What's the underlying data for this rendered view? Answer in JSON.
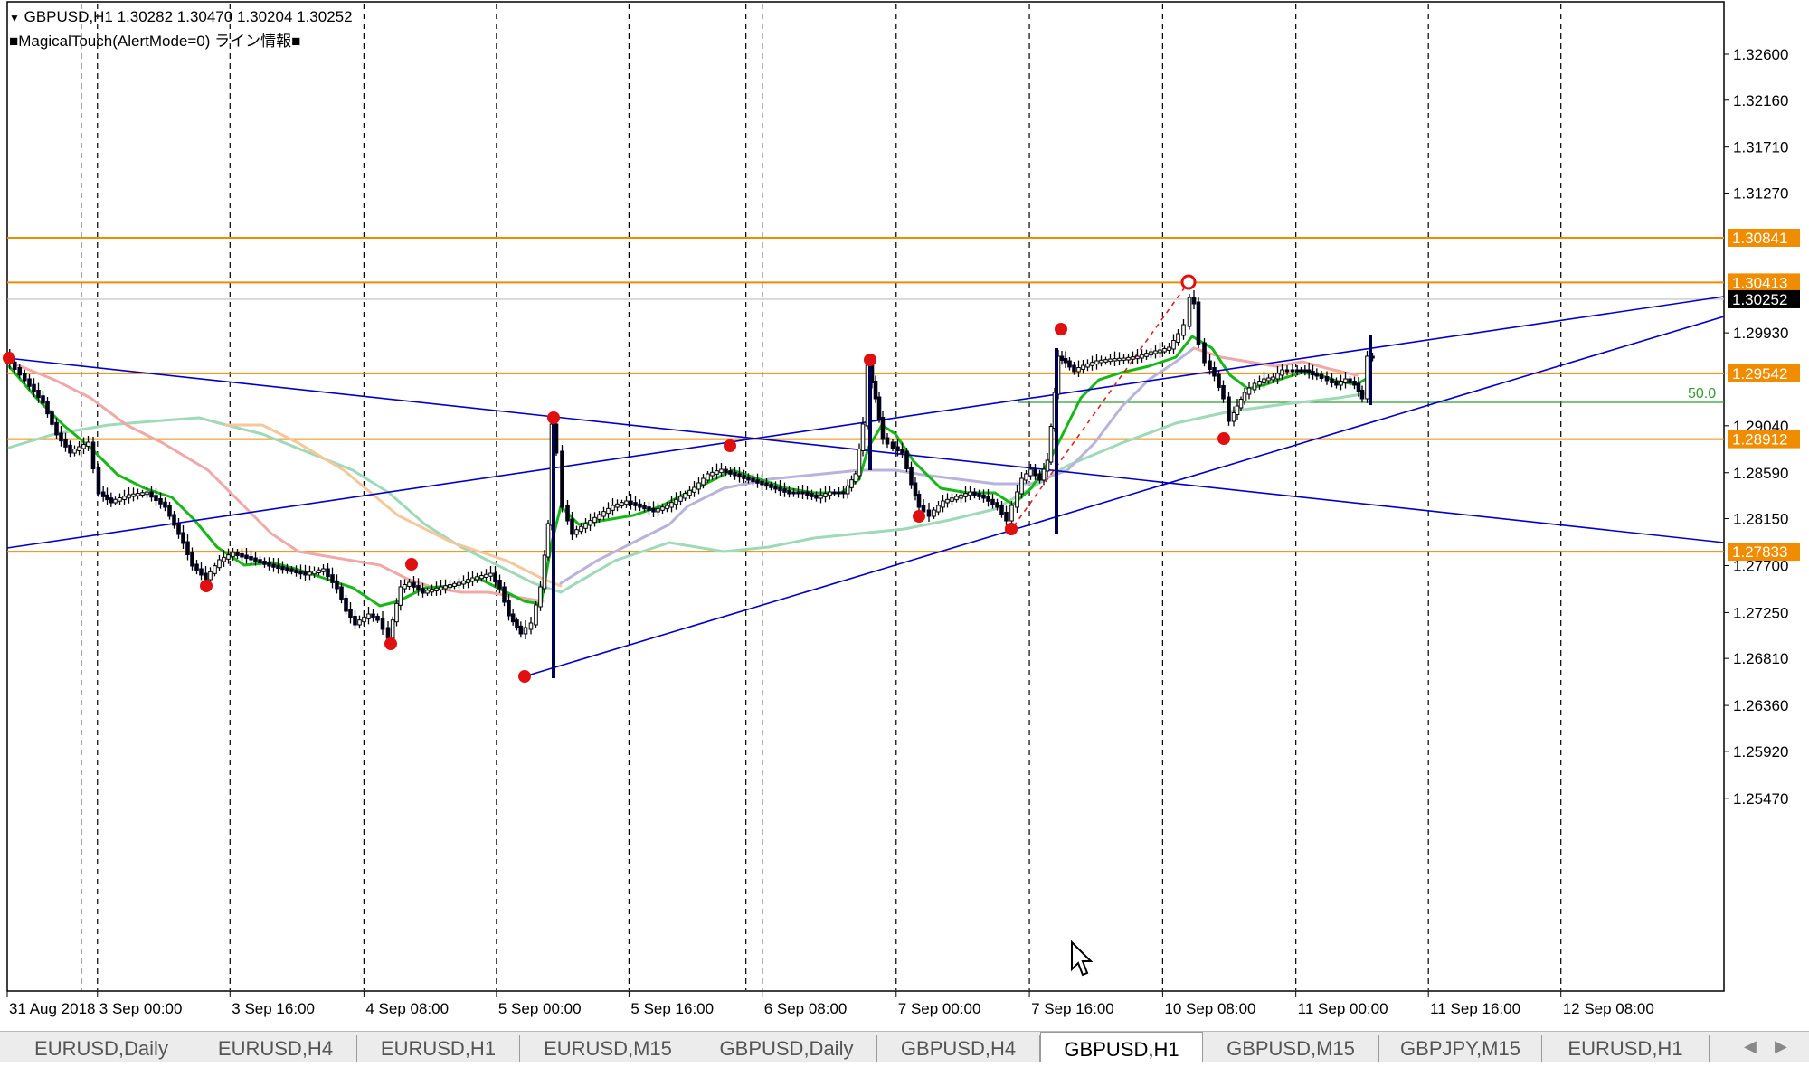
{
  "header": {
    "symbol_line": "GBPUSD,H1  1.30282 1.30470 1.30204 1.30252",
    "indicator_line": "■MagicalTouch(AlertMode=0) ライン情報■"
  },
  "chart_data": {
    "type": "candlestick",
    "symbol": "GBPUSD",
    "timeframe": "H1",
    "ohlc": {
      "open": 1.30282,
      "high": 1.3047,
      "low": 1.30204,
      "close": 1.30252
    },
    "y_ticks": [
      1.326,
      1.3216,
      1.3171,
      1.3127,
      1.2993,
      1.2904,
      1.2859,
      1.2815,
      1.277,
      1.2725,
      1.2681,
      1.2636,
      1.2592,
      1.2547
    ],
    "y_tick_labels": [
      "1.32600",
      "1.32160",
      "1.31710",
      "1.31270",
      "1.29930",
      "1.29040",
      "1.28590",
      "1.28150",
      "1.27700",
      "1.27250",
      "1.26810",
      "1.26360",
      "1.25920",
      "1.25470"
    ],
    "x_tick_labels": [
      "31 Aug 2018",
      "3 Sep 00:00",
      "3 Sep 16:00",
      "4 Sep 08:00",
      "5 Sep 00:00",
      "5 Sep 16:00",
      "6 Sep 08:00",
      "7 Sep 00:00",
      "7 Sep 16:00",
      "10 Sep 08:00",
      "11 Sep 00:00",
      "11 Sep 16:00",
      "12 Sep 08:00"
    ],
    "horizontal_levels": [
      {
        "value": 1.30841,
        "label": "1.30841"
      },
      {
        "value": 1.30413,
        "label": "1.30413"
      },
      {
        "value": 1.29542,
        "label": "1.29542"
      },
      {
        "value": 1.28912,
        "label": "1.28912"
      },
      {
        "value": 1.27833,
        "label": "1.27833"
      }
    ],
    "current_price": {
      "value": 1.30252,
      "label": "1.30252"
    },
    "fib_label": "50.0",
    "level_color": "#f08c00",
    "trendline_color": "#0000c8",
    "ma_fast_color": "#16b816"
  },
  "tabs": [
    {
      "label": "EURUSD,Daily",
      "active": false
    },
    {
      "label": "EURUSD,H4",
      "active": false
    },
    {
      "label": "EURUSD,H1",
      "active": false
    },
    {
      "label": "EURUSD,M15",
      "active": false
    },
    {
      "label": "GBPUSD,Daily",
      "active": false
    },
    {
      "label": "GBPUSD,H4",
      "active": false
    },
    {
      "label": "GBPUSD,H1",
      "active": true
    },
    {
      "label": "GBPUSD,M15",
      "active": false
    },
    {
      "label": "GBPJPY,M15",
      "active": false
    },
    {
      "label": "EURUSD,H1",
      "active": false
    }
  ],
  "tab_scroll": {
    "left": "◀",
    "right": "▶"
  }
}
